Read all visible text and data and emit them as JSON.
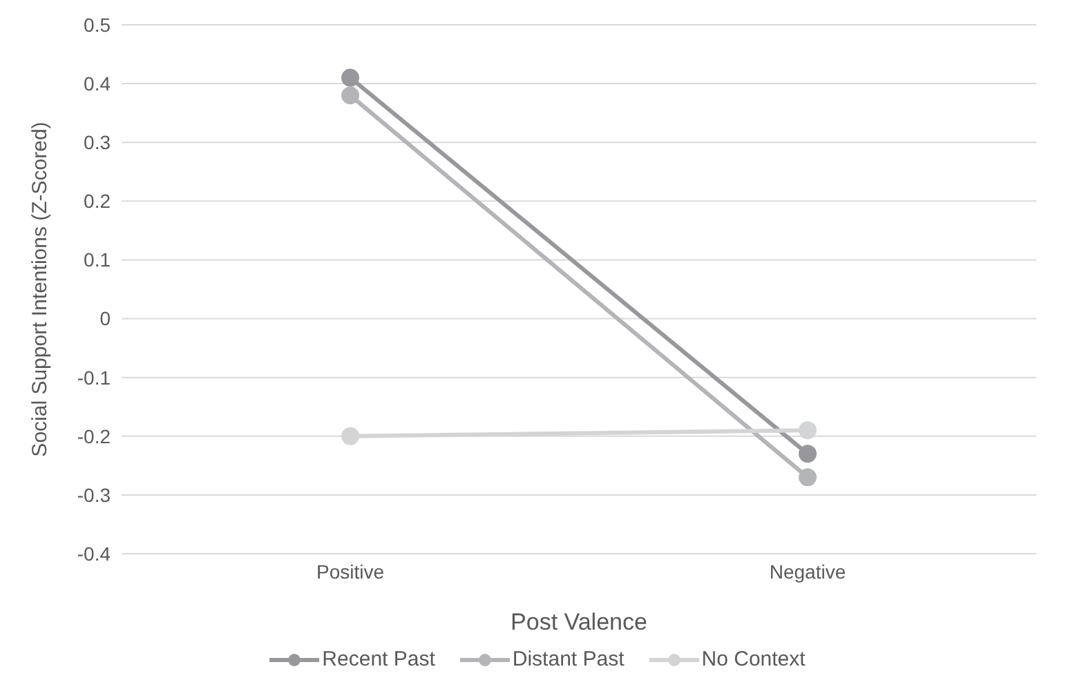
{
  "chart_data": {
    "type": "line",
    "xlabel": "Post Valence",
    "ylabel": "Social Support Intentions (Z-Scored)",
    "categories": [
      "Positive",
      "Negative"
    ],
    "series": [
      {
        "name": "Recent Past",
        "color": "#98989c",
        "values": [
          0.41,
          -0.23
        ]
      },
      {
        "name": "Distant Past",
        "color": "#b4b5b8",
        "values": [
          0.38,
          -0.27
        ]
      },
      {
        "name": "No Context",
        "color": "#d3d4d6",
        "values": [
          -0.2,
          -0.19
        ]
      }
    ],
    "ylim": [
      -0.4,
      0.5
    ],
    "yticks": [
      -0.4,
      -0.3,
      -0.2,
      -0.1,
      0,
      0.1,
      0.2,
      0.3,
      0.4,
      0.5
    ],
    "grid": "y",
    "legend": "bottom",
    "marker": "circle",
    "line_style": "solid"
  }
}
